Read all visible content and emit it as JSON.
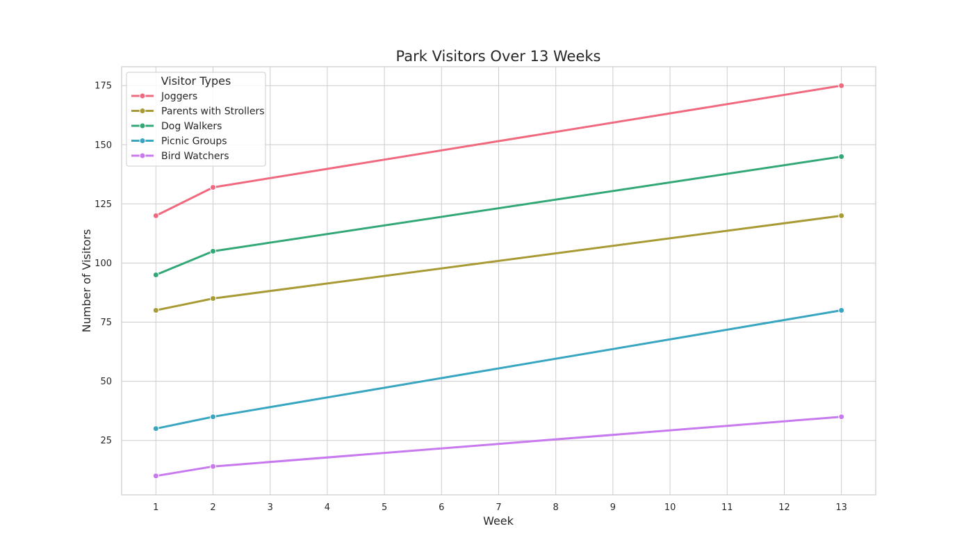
{
  "chart_data": {
    "type": "line",
    "title": "Park Visitors Over 13 Weeks",
    "xlabel": "Week",
    "ylabel": "Number of Visitors",
    "x": [
      1,
      2,
      13
    ],
    "xticks": [
      "1",
      "2",
      "3",
      "4",
      "5",
      "6",
      "7",
      "8",
      "9",
      "10",
      "11",
      "12",
      "13"
    ],
    "yticks": [
      "25",
      "50",
      "75",
      "100",
      "125",
      "150",
      "175"
    ],
    "xlim": [
      0.4,
      13.6
    ],
    "ylim": [
      2,
      183
    ],
    "grid": true,
    "legend": {
      "title": "Visitor Types",
      "placement": "top-left"
    },
    "series": [
      {
        "name": "Joggers",
        "color": "#f0697e",
        "values": [
          120,
          132,
          175
        ]
      },
      {
        "name": "Parents with Strollers",
        "color": "#a89a34",
        "values": [
          80,
          85,
          120
        ]
      },
      {
        "name": "Dog Walkers",
        "color": "#33a877",
        "values": [
          95,
          105,
          145
        ]
      },
      {
        "name": "Picnic Groups",
        "color": "#38a6c1",
        "values": [
          30,
          35,
          80
        ]
      },
      {
        "name": "Bird Watchers",
        "color": "#c879ee",
        "values": [
          10,
          14,
          35
        ]
      }
    ]
  }
}
